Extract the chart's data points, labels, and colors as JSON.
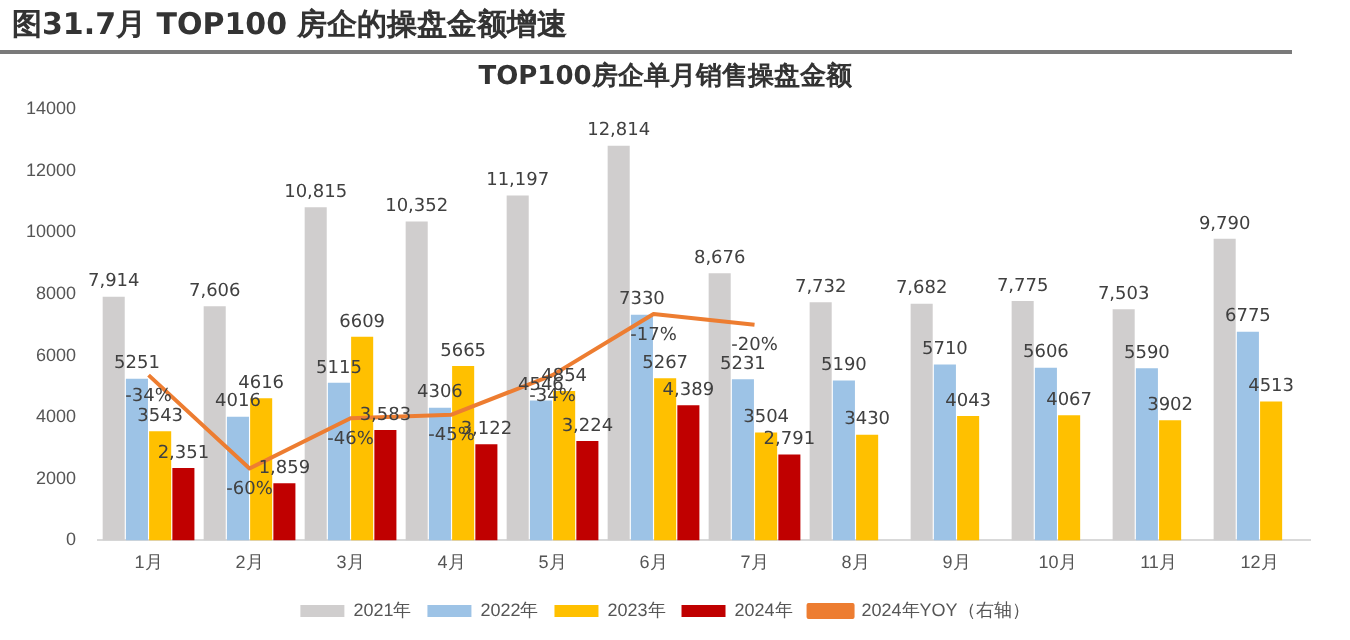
{
  "chart_data": {
    "type": "bar",
    "title": "图31.7月 TOP100 房企的操盘金额增速",
    "subtitle": "TOP100房企单月销售操盘金额",
    "categories": [
      "1月",
      "2月",
      "3月",
      "4月",
      "5月",
      "6月",
      "7月",
      "8月",
      "9月",
      "10月",
      "11月",
      "12月"
    ],
    "series": [
      {
        "name": "2021年",
        "color": "#d0cece",
        "values": [
          7914,
          7606,
          10815,
          10352,
          11197,
          12814,
          8676,
          7732,
          7682,
          7775,
          7503,
          9790
        ],
        "value_labels": [
          "7,914",
          "7,606",
          "10,815",
          "10,352",
          "11,197",
          "12,814",
          "8,676",
          "7,732",
          "7,682",
          "7,775",
          "7,503",
          "9,790"
        ]
      },
      {
        "name": "2022年",
        "color": "#9dc3e6",
        "values": [
          5251,
          4016,
          5115,
          4306,
          4546,
          7330,
          5231,
          5190,
          5710,
          5606,
          5590,
          6775
        ],
        "value_labels": [
          "5251",
          "4016",
          "5115",
          "4306",
          "4546",
          "7330",
          "5231",
          "5190",
          "5710",
          "5606",
          "5590",
          "6775"
        ]
      },
      {
        "name": "2023年",
        "color": "#ffc000",
        "values": [
          3543,
          4616,
          6609,
          5665,
          4854,
          5267,
          3504,
          3430,
          4043,
          4067,
          3902,
          4513
        ],
        "value_labels": [
          "3543",
          "4616",
          "6609",
          "5665",
          "4854",
          "5267",
          "3504",
          "3430",
          "4043",
          "4067",
          "3902",
          "4513"
        ]
      },
      {
        "name": "2024年",
        "color": "#c00000",
        "values": [
          2351,
          1859,
          3583,
          3122,
          3224,
          4389,
          2791,
          null,
          null,
          null,
          null,
          null
        ],
        "value_labels": [
          "2,351",
          "1,859",
          "3,583",
          "3,122",
          "3,224",
          "4,389",
          "2,791",
          null,
          null,
          null,
          null,
          null
        ]
      },
      {
        "name": "2024年YOY（右轴）",
        "type": "line",
        "axis": "y2",
        "color": "#ed7d31",
        "values": [
          -34,
          -60,
          -46,
          -45,
          -34,
          -17,
          -20,
          null,
          null,
          null,
          null,
          null
        ],
        "value_labels": [
          "-34%",
          "-60%",
          "-46%",
          "-45%",
          "-34%",
          "-17%",
          "-20%",
          null,
          null,
          null,
          null,
          null
        ]
      }
    ],
    "ylim": [
      0,
      14000
    ],
    "yticks": [
      0,
      2000,
      4000,
      6000,
      8000,
      10000,
      12000,
      14000
    ],
    "legend": "bottom",
    "marker": "none"
  }
}
